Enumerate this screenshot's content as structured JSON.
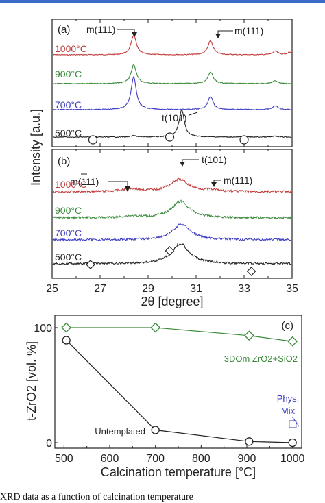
{
  "caption": "XRD data as a function of calcination temperature",
  "chart_data": [
    {
      "type": "line",
      "panel": "(a)",
      "xlabel": "",
      "ylabel": "Intensity [a.u.]",
      "xlim": [
        25,
        35
      ],
      "series": [
        {
          "name": "1000°C",
          "color": "#c23b3b",
          "peaks": [
            {
              "x": 28.4,
              "h": 0.85
            },
            {
              "x": 31.6,
              "h": 0.6
            },
            {
              "x": 34.3,
              "h": 0.15
            },
            {
              "x": 34.9,
              "h": 0.1
            }
          ]
        },
        {
          "name": "900°C",
          "color": "#3a8a3a",
          "peaks": [
            {
              "x": 28.4,
              "h": 0.8
            },
            {
              "x": 31.6,
              "h": 0.5
            },
            {
              "x": 34.3,
              "h": 0.12
            }
          ]
        },
        {
          "name": "700°C",
          "color": "#3b3bc2",
          "peaks": [
            {
              "x": 28.4,
              "h": 1.0
            },
            {
              "x": 31.6,
              "h": 0.4
            },
            {
              "x": 34.3,
              "h": 0.12
            }
          ]
        },
        {
          "name": "500°C",
          "color": "#222222",
          "peaks": [
            {
              "x": 30.4,
              "h": 1.0
            },
            {
              "x": 28.4,
              "h": 0.05
            },
            {
              "x": 34.3,
              "h": 0.03
            }
          ]
        }
      ],
      "markers": [
        {
          "type": "circle",
          "x": 26.7
        },
        {
          "type": "circle",
          "x": 29.9
        },
        {
          "type": "circle",
          "x": 33.0
        }
      ],
      "annotations": [
        {
          "text": "m(111)",
          "x": 28.4
        },
        {
          "text": "m(111)",
          "x": 31.6
        },
        {
          "text": "t(101)",
          "x": 30.4
        }
      ]
    },
    {
      "type": "line",
      "panel": "(b)",
      "xlabel": "2θ [degree]",
      "ylabel": "Intensity [a.u.]",
      "xlim": [
        25,
        35
      ],
      "xticks": [
        25,
        27,
        29,
        31,
        33,
        35
      ],
      "series": [
        {
          "name": "1000°C",
          "color": "#c23b3b",
          "peaks": [
            {
              "x": 30.3,
              "h": 0.5
            },
            {
              "x": 28.3,
              "h": 0.12
            },
            {
              "x": 31.6,
              "h": 0.06
            }
          ]
        },
        {
          "name": "900°C",
          "color": "#3a8a3a",
          "peaks": [
            {
              "x": 30.35,
              "h": 0.6
            },
            {
              "x": 28.3,
              "h": 0.06
            }
          ]
        },
        {
          "name": "700°C",
          "color": "#3b3bc2",
          "peaks": [
            {
              "x": 30.4,
              "h": 0.6
            }
          ]
        },
        {
          "name": "500°C",
          "color": "#222222",
          "peaks": [
            {
              "x": 30.35,
              "h": 0.7
            }
          ]
        }
      ],
      "markers": [
        {
          "type": "diamond",
          "x": 26.6
        },
        {
          "type": "diamond",
          "x": 29.9
        },
        {
          "type": "diamond",
          "x": 33.3
        }
      ],
      "annotations": [
        {
          "text": "m(111)",
          "x": 28.3
        },
        {
          "text": "t(101)",
          "x": 30.3
        },
        {
          "text": "m(111)",
          "x": 31.7
        }
      ]
    },
    {
      "type": "line",
      "panel": "(c)",
      "xlabel": "Calcination temperature [°C]",
      "ylabel": "t-ZrO2 [vol. %]",
      "xlim": [
        480,
        1020
      ],
      "ylim": [
        0,
        100
      ],
      "xticks": [
        500,
        600,
        700,
        800,
        900,
        1000
      ],
      "yticks": [
        0,
        100
      ],
      "series": [
        {
          "name": "3DOm ZrO2+SiO2",
          "color": "#3a8a3a",
          "marker": "diamond",
          "x": [
            505,
            700,
            905,
            1000
          ],
          "y": [
            100,
            100,
            93,
            88
          ]
        },
        {
          "name": "Untemplated",
          "color": "#222222",
          "marker": "circle",
          "x": [
            505,
            700,
            905,
            1000
          ],
          "y": [
            89,
            11,
            1,
            0
          ]
        },
        {
          "name": "Phys. Mix",
          "color": "#3b3bc2",
          "marker": "square",
          "x": [
            1000
          ],
          "y": [
            16
          ]
        }
      ]
    }
  ],
  "labels": {
    "a_panel": "(a)",
    "b_panel": "(b)",
    "c_panel": "(c)",
    "a_m111_left": "m(111)",
    "a_m111_right": "m(111)",
    "a_t101": "t(101)",
    "b_m111_left": "m(111)",
    "b_t101": "t(101)",
    "b_m111_right": "m(111)",
    "t1000": "1000°C",
    "t900": "900°C",
    "t700": "700°C",
    "t500": "500°C",
    "y_intensity": "Intensity [a.u.]",
    "x_two_theta": "2θ [degree]",
    "y_tzro2": "t-ZrO2 [vol. %]",
    "x_calc": "Calcination temperature [°C]",
    "legend_3dom": "3DOm ZrO2+SiO2",
    "legend_untemplated": "Untemplated",
    "legend_phys": "Phys.",
    "legend_mix": "Mix"
  }
}
